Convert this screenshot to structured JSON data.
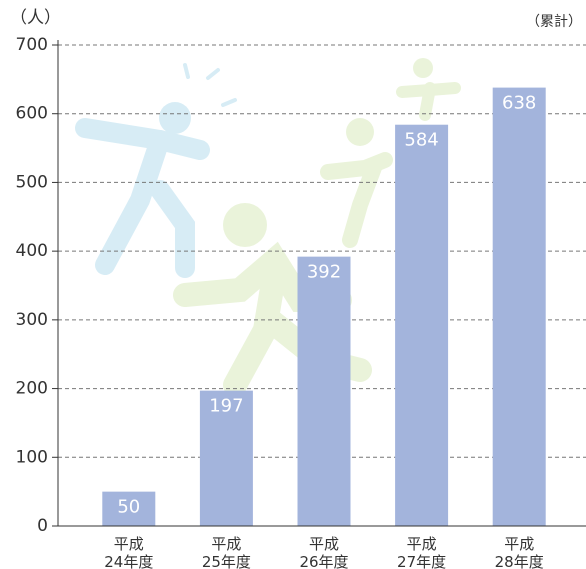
{
  "chart_data": {
    "type": "bar",
    "y_unit": "（人）",
    "note": "（累計）",
    "categories": [
      "平成\n24年度",
      "平成\n25年度",
      "平成\n26年度",
      "平成\n27年度",
      "平成\n28年度"
    ],
    "values": [
      50,
      197,
      392,
      584,
      638
    ],
    "color": "#a3b4dc",
    "ylim": [
      0,
      700
    ],
    "yticks": [
      0,
      100,
      200,
      300,
      400,
      500,
      600,
      700
    ],
    "grid": true
  }
}
